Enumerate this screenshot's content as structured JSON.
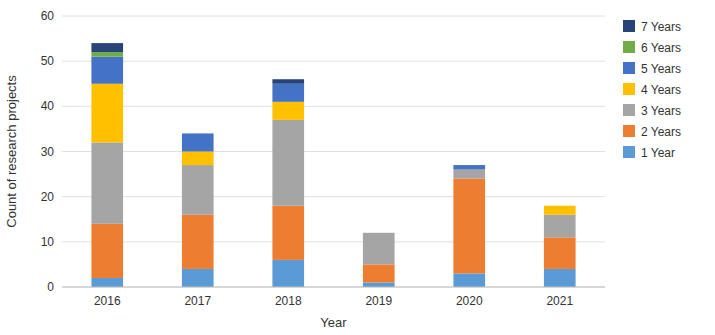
{
  "chart_data": {
    "type": "bar",
    "stacked": true,
    "xlabel": "Year",
    "ylabel": "Count of research projects",
    "categories": [
      "2016",
      "2017",
      "2018",
      "2019",
      "2020",
      "2021"
    ],
    "series": [
      {
        "name": "1 Year",
        "color": "#5b9bd5",
        "values": [
          2,
          4,
          6,
          1,
          3,
          4
        ]
      },
      {
        "name": "2 Years",
        "color": "#ed7d31",
        "values": [
          12,
          12,
          12,
          4,
          21,
          7
        ]
      },
      {
        "name": "3 Years",
        "color": "#a5a5a5",
        "values": [
          18,
          11,
          19,
          7,
          2,
          5
        ]
      },
      {
        "name": "4 Years",
        "color": "#ffc000",
        "values": [
          13,
          3,
          4,
          0,
          0,
          2
        ]
      },
      {
        "name": "5 Years",
        "color": "#4472c4",
        "values": [
          6,
          4,
          4,
          0,
          1,
          0
        ]
      },
      {
        "name": "6 Years",
        "color": "#70ad47",
        "values": [
          1,
          0,
          0,
          0,
          0,
          0
        ]
      },
      {
        "name": "7 Years",
        "color": "#264478",
        "values": [
          2,
          0,
          1,
          0,
          0,
          0
        ]
      }
    ],
    "ylim": [
      0,
      60
    ],
    "yticks": [
      0,
      10,
      20,
      30,
      40,
      50,
      60
    ],
    "grid": true,
    "legend": "right"
  }
}
